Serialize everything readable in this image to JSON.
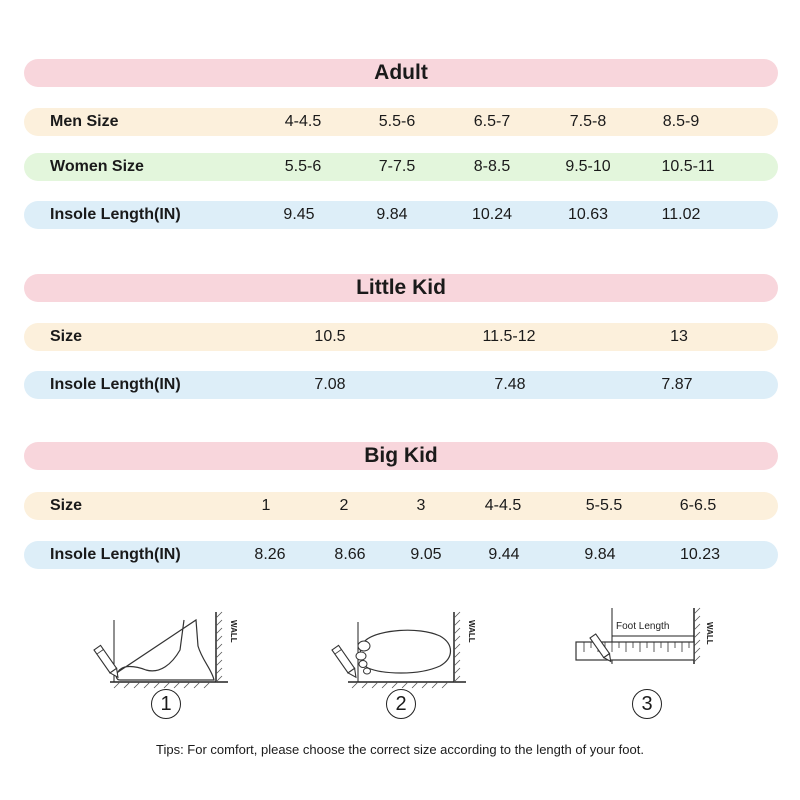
{
  "adult": {
    "title": "Adult",
    "men": {
      "label": "Men Size",
      "values": [
        "4-4.5",
        "5.5-6",
        "6.5-7",
        "7.5-8",
        "8.5-9"
      ]
    },
    "women": {
      "label": "Women Size",
      "values": [
        "5.5-6",
        "7-7.5",
        "8-8.5",
        "9.5-10",
        "10.5-11"
      ]
    },
    "insole": {
      "label": "Insole Length(IN)",
      "values": [
        "9.45",
        "9.84",
        "10.24",
        "10.63",
        "11.02"
      ]
    }
  },
  "little_kid": {
    "title": "Little Kid",
    "size": {
      "label": "Size",
      "values": [
        "10.5",
        "11.5-12",
        "13"
      ]
    },
    "insole": {
      "label": "Insole Length(IN)",
      "values": [
        "7.08",
        "7.48",
        "7.87"
      ]
    }
  },
  "big_kid": {
    "title": "Big Kid",
    "size": {
      "label": "Size",
      "values": [
        "1",
        "2",
        "3",
        "4-4.5",
        "5-5.5",
        "6-6.5"
      ]
    },
    "insole": {
      "label": "Insole Length(IN)",
      "values": [
        "8.26",
        "8.66",
        "9.05",
        "9.44",
        "9.84",
        "10.23"
      ]
    }
  },
  "steps": {
    "wall_label": "WALL",
    "foot_length_label": "Foot Length",
    "numbers": [
      "1",
      "2",
      "3"
    ]
  },
  "tips": "Tips:  For comfort, please choose the correct size according to the length of your foot.",
  "colors": {
    "title_bg": "#f8d6dc",
    "beige_bg": "#fcf0dc",
    "green_bg": "#e3f6dc",
    "blue_bg": "#ddeef8"
  }
}
